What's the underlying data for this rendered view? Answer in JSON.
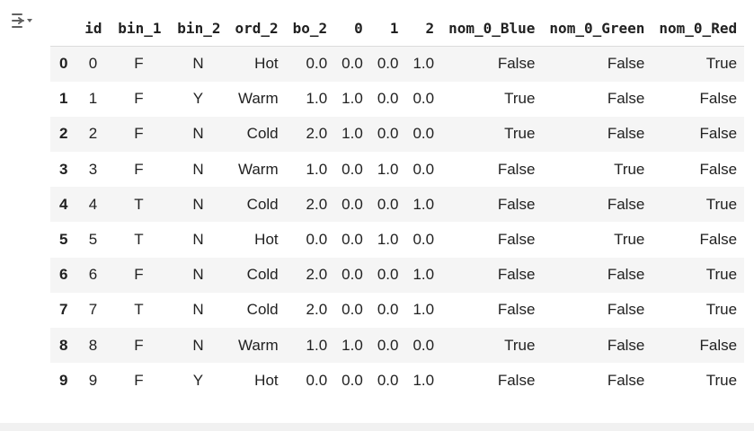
{
  "toolbar": {
    "output_toggle_icon": "collapse-output-icon"
  },
  "table": {
    "index_header": "",
    "columns": [
      "id",
      "bin_1",
      "bin_2",
      "ord_2",
      "bo_2",
      "0",
      "1",
      "2",
      "nom_0_Blue",
      "nom_0_Green",
      "nom_0_Red"
    ],
    "rows": [
      {
        "index": "0",
        "cells": [
          "0",
          "F",
          "N",
          "Hot",
          "0.0",
          "0.0",
          "0.0",
          "1.0",
          "False",
          "False",
          "True"
        ]
      },
      {
        "index": "1",
        "cells": [
          "1",
          "F",
          "Y",
          "Warm",
          "1.0",
          "1.0",
          "0.0",
          "0.0",
          "True",
          "False",
          "False"
        ]
      },
      {
        "index": "2",
        "cells": [
          "2",
          "F",
          "N",
          "Cold",
          "2.0",
          "1.0",
          "0.0",
          "0.0",
          "True",
          "False",
          "False"
        ]
      },
      {
        "index": "3",
        "cells": [
          "3",
          "F",
          "N",
          "Warm",
          "1.0",
          "0.0",
          "1.0",
          "0.0",
          "False",
          "True",
          "False"
        ]
      },
      {
        "index": "4",
        "cells": [
          "4",
          "T",
          "N",
          "Cold",
          "2.0",
          "0.0",
          "0.0",
          "1.0",
          "False",
          "False",
          "True"
        ]
      },
      {
        "index": "5",
        "cells": [
          "5",
          "T",
          "N",
          "Hot",
          "0.0",
          "0.0",
          "1.0",
          "0.0",
          "False",
          "True",
          "False"
        ]
      },
      {
        "index": "6",
        "cells": [
          "6",
          "F",
          "N",
          "Cold",
          "2.0",
          "0.0",
          "0.0",
          "1.0",
          "False",
          "False",
          "True"
        ]
      },
      {
        "index": "7",
        "cells": [
          "7",
          "T",
          "N",
          "Cold",
          "2.0",
          "0.0",
          "0.0",
          "1.0",
          "False",
          "False",
          "True"
        ]
      },
      {
        "index": "8",
        "cells": [
          "8",
          "F",
          "N",
          "Warm",
          "1.0",
          "1.0",
          "0.0",
          "0.0",
          "True",
          "False",
          "False"
        ]
      },
      {
        "index": "9",
        "cells": [
          "9",
          "F",
          "Y",
          "Hot",
          "0.0",
          "0.0",
          "0.0",
          "1.0",
          "False",
          "False",
          "True"
        ]
      }
    ]
  },
  "colors": {
    "stripe": "#f5f5f5",
    "text": "#212121",
    "icon": "#616161"
  }
}
